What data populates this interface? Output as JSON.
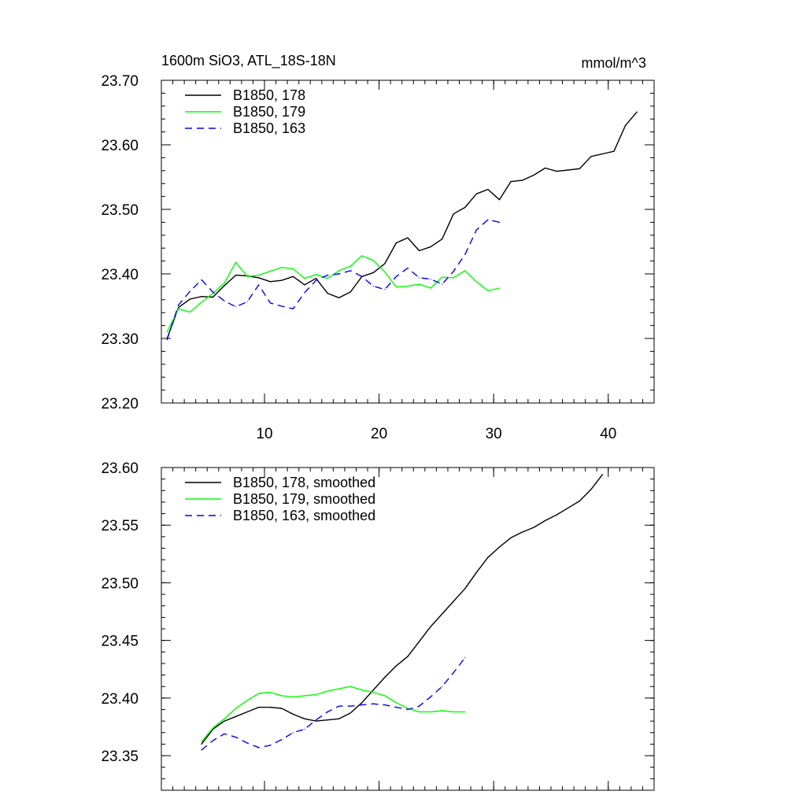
{
  "colors": {
    "black": "#000000",
    "green": "#00ff00",
    "blue": "#0000ff"
  },
  "chart_data": [
    {
      "type": "line",
      "title": "1600m SiO3, ATL_18S-18N",
      "units": "mmol/m^3",
      "xlabel": "",
      "ylabel": "",
      "xlim": [
        1,
        44
      ],
      "ylim": [
        23.2,
        23.7
      ],
      "xticks": [
        10,
        20,
        30,
        40
      ],
      "xtick_labels": [
        "10",
        "20",
        "30",
        "40"
      ],
      "yticks": [
        23.2,
        23.3,
        23.4,
        23.5,
        23.6,
        23.7
      ],
      "ytick_labels": [
        "23.20",
        "23.30",
        "23.40",
        "23.50",
        "23.60",
        "23.70"
      ],
      "legend_position": "top-left",
      "series": [
        {
          "name": "B1850, 178",
          "color": "#000000",
          "dash": "solid",
          "x": [
            1.5,
            2.5,
            3.5,
            4.5,
            5.5,
            6.5,
            7.5,
            8.5,
            9.5,
            10.5,
            11.5,
            12.5,
            13.5,
            14.5,
            15.5,
            16.5,
            17.5,
            18.5,
            19.5,
            20.5,
            21.5,
            22.5,
            23.5,
            24.5,
            25.5,
            26.5,
            27.5,
            28.5,
            29.5,
            30.5,
            31.5,
            32.5,
            33.5,
            34.5,
            35.5,
            36.5,
            37.5,
            38.5,
            39.5,
            40.5,
            41.5,
            42.5
          ],
          "values": [
            23.3,
            23.348,
            23.361,
            23.365,
            23.364,
            23.382,
            23.398,
            23.397,
            23.394,
            23.388,
            23.39,
            23.396,
            23.383,
            23.393,
            23.37,
            23.363,
            23.372,
            23.396,
            23.402,
            23.416,
            23.448,
            23.456,
            23.436,
            23.442,
            23.454,
            23.493,
            23.503,
            23.524,
            23.531,
            23.515,
            23.543,
            23.545,
            23.553,
            23.564,
            23.559,
            23.561,
            23.563,
            23.582,
            23.586,
            23.59,
            23.63,
            23.651
          ]
        },
        {
          "name": "B1850, 179",
          "color": "#00ff00",
          "dash": "solid",
          "x": [
            1.5,
            2.5,
            3.5,
            4.5,
            5.5,
            6.5,
            7.5,
            8.5,
            9.5,
            10.5,
            11.5,
            12.5,
            13.5,
            14.5,
            15.5,
            16.5,
            17.5,
            18.5,
            19.5,
            20.5,
            21.5,
            22.5,
            23.5,
            24.5,
            25.5,
            26.5,
            27.5,
            28.5,
            29.5,
            30.5
          ],
          "values": [
            23.31,
            23.346,
            23.341,
            23.356,
            23.37,
            23.386,
            23.418,
            23.396,
            23.398,
            23.404,
            23.41,
            23.408,
            23.393,
            23.399,
            23.393,
            23.405,
            23.412,
            23.428,
            23.421,
            23.403,
            23.38,
            23.381,
            23.384,
            23.378,
            23.395,
            23.394,
            23.405,
            23.388,
            23.374,
            23.378
          ]
        },
        {
          "name": "B1850, 163",
          "color": "#0000ff",
          "dash": "dashed",
          "x": [
            1.5,
            2.5,
            3.5,
            4.5,
            5.5,
            6.5,
            7.5,
            8.5,
            9.5,
            10.5,
            11.5,
            12.5,
            13.5,
            14.5,
            15.5,
            16.5,
            17.5,
            18.5,
            19.5,
            20.5,
            21.5,
            22.5,
            23.5,
            24.5,
            25.5,
            26.5,
            27.5,
            28.5,
            29.5,
            30.5
          ],
          "values": [
            23.298,
            23.352,
            23.373,
            23.391,
            23.372,
            23.358,
            23.349,
            23.357,
            23.383,
            23.355,
            23.35,
            23.346,
            23.371,
            23.39,
            23.398,
            23.4,
            23.405,
            23.396,
            23.381,
            23.376,
            23.396,
            23.409,
            23.394,
            23.392,
            23.384,
            23.404,
            23.43,
            23.468,
            23.484,
            23.48
          ]
        }
      ]
    },
    {
      "type": "line",
      "title": "",
      "xlabel": "",
      "ylabel": "",
      "xlim": [
        1,
        44
      ],
      "ylim": [
        23.32,
        23.6
      ],
      "xticks": [
        10,
        20,
        30,
        40
      ],
      "yticks": [
        23.35,
        23.4,
        23.45,
        23.5,
        23.55,
        23.6
      ],
      "ytick_labels": [
        "23.35",
        "23.40",
        "23.45",
        "23.50",
        "23.55",
        "23.60"
      ],
      "legend_position": "top-left",
      "series": [
        {
          "name": "B1850, 178, smoothed",
          "color": "#000000",
          "dash": "solid",
          "x": [
            4.5,
            5.5,
            6.5,
            7.5,
            8.5,
            9.5,
            10.5,
            11.5,
            12.5,
            13.5,
            14.5,
            15.5,
            16.5,
            17.5,
            18.5,
            19.5,
            20.5,
            21.5,
            22.5,
            23.5,
            24.5,
            25.5,
            26.5,
            27.5,
            28.5,
            29.5,
            30.5,
            31.5,
            32.5,
            33.5,
            34.5,
            35.5,
            36.5,
            37.5,
            38.5,
            39.5
          ],
          "values": [
            23.36,
            23.373,
            23.38,
            23.384,
            23.388,
            23.392,
            23.392,
            23.391,
            23.386,
            23.382,
            23.38,
            23.381,
            23.382,
            23.387,
            23.396,
            23.407,
            23.418,
            23.428,
            23.436,
            23.449,
            23.462,
            23.473,
            23.484,
            23.495,
            23.509,
            23.522,
            23.531,
            23.539,
            23.544,
            23.548,
            23.554,
            23.559,
            23.565,
            23.571,
            23.581,
            23.594
          ]
        },
        {
          "name": "B1850, 179, smoothed",
          "color": "#00ff00",
          "dash": "solid",
          "x": [
            4.5,
            5.5,
            6.5,
            7.5,
            8.5,
            9.5,
            10.5,
            11.5,
            12.5,
            13.5,
            14.5,
            15.5,
            16.5,
            17.5,
            18.5,
            19.5,
            20.5,
            21.5,
            22.5,
            23.5,
            24.5,
            25.5,
            26.5,
            27.5
          ],
          "values": [
            23.362,
            23.374,
            23.382,
            23.391,
            23.398,
            23.404,
            23.405,
            23.402,
            23.401,
            23.402,
            23.403,
            23.406,
            23.408,
            23.41,
            23.407,
            23.405,
            23.402,
            23.396,
            23.391,
            23.388,
            23.388,
            23.389,
            23.388,
            23.388
          ]
        },
        {
          "name": "B1850, 163, smoothed",
          "color": "#0000ff",
          "dash": "dashed",
          "x": [
            4.5,
            5.5,
            6.5,
            7.5,
            8.5,
            9.5,
            10.5,
            11.5,
            12.5,
            13.5,
            14.5,
            15.5,
            16.5,
            17.5,
            18.5,
            19.5,
            20.5,
            21.5,
            22.5,
            23.5,
            24.5,
            25.5,
            26.5,
            27.5
          ],
          "values": [
            23.355,
            23.363,
            23.369,
            23.366,
            23.361,
            23.357,
            23.359,
            23.364,
            23.37,
            23.373,
            23.381,
            23.388,
            23.393,
            23.393,
            23.394,
            23.395,
            23.394,
            23.392,
            23.39,
            23.393,
            23.401,
            23.41,
            23.422,
            23.435
          ]
        }
      ]
    }
  ]
}
